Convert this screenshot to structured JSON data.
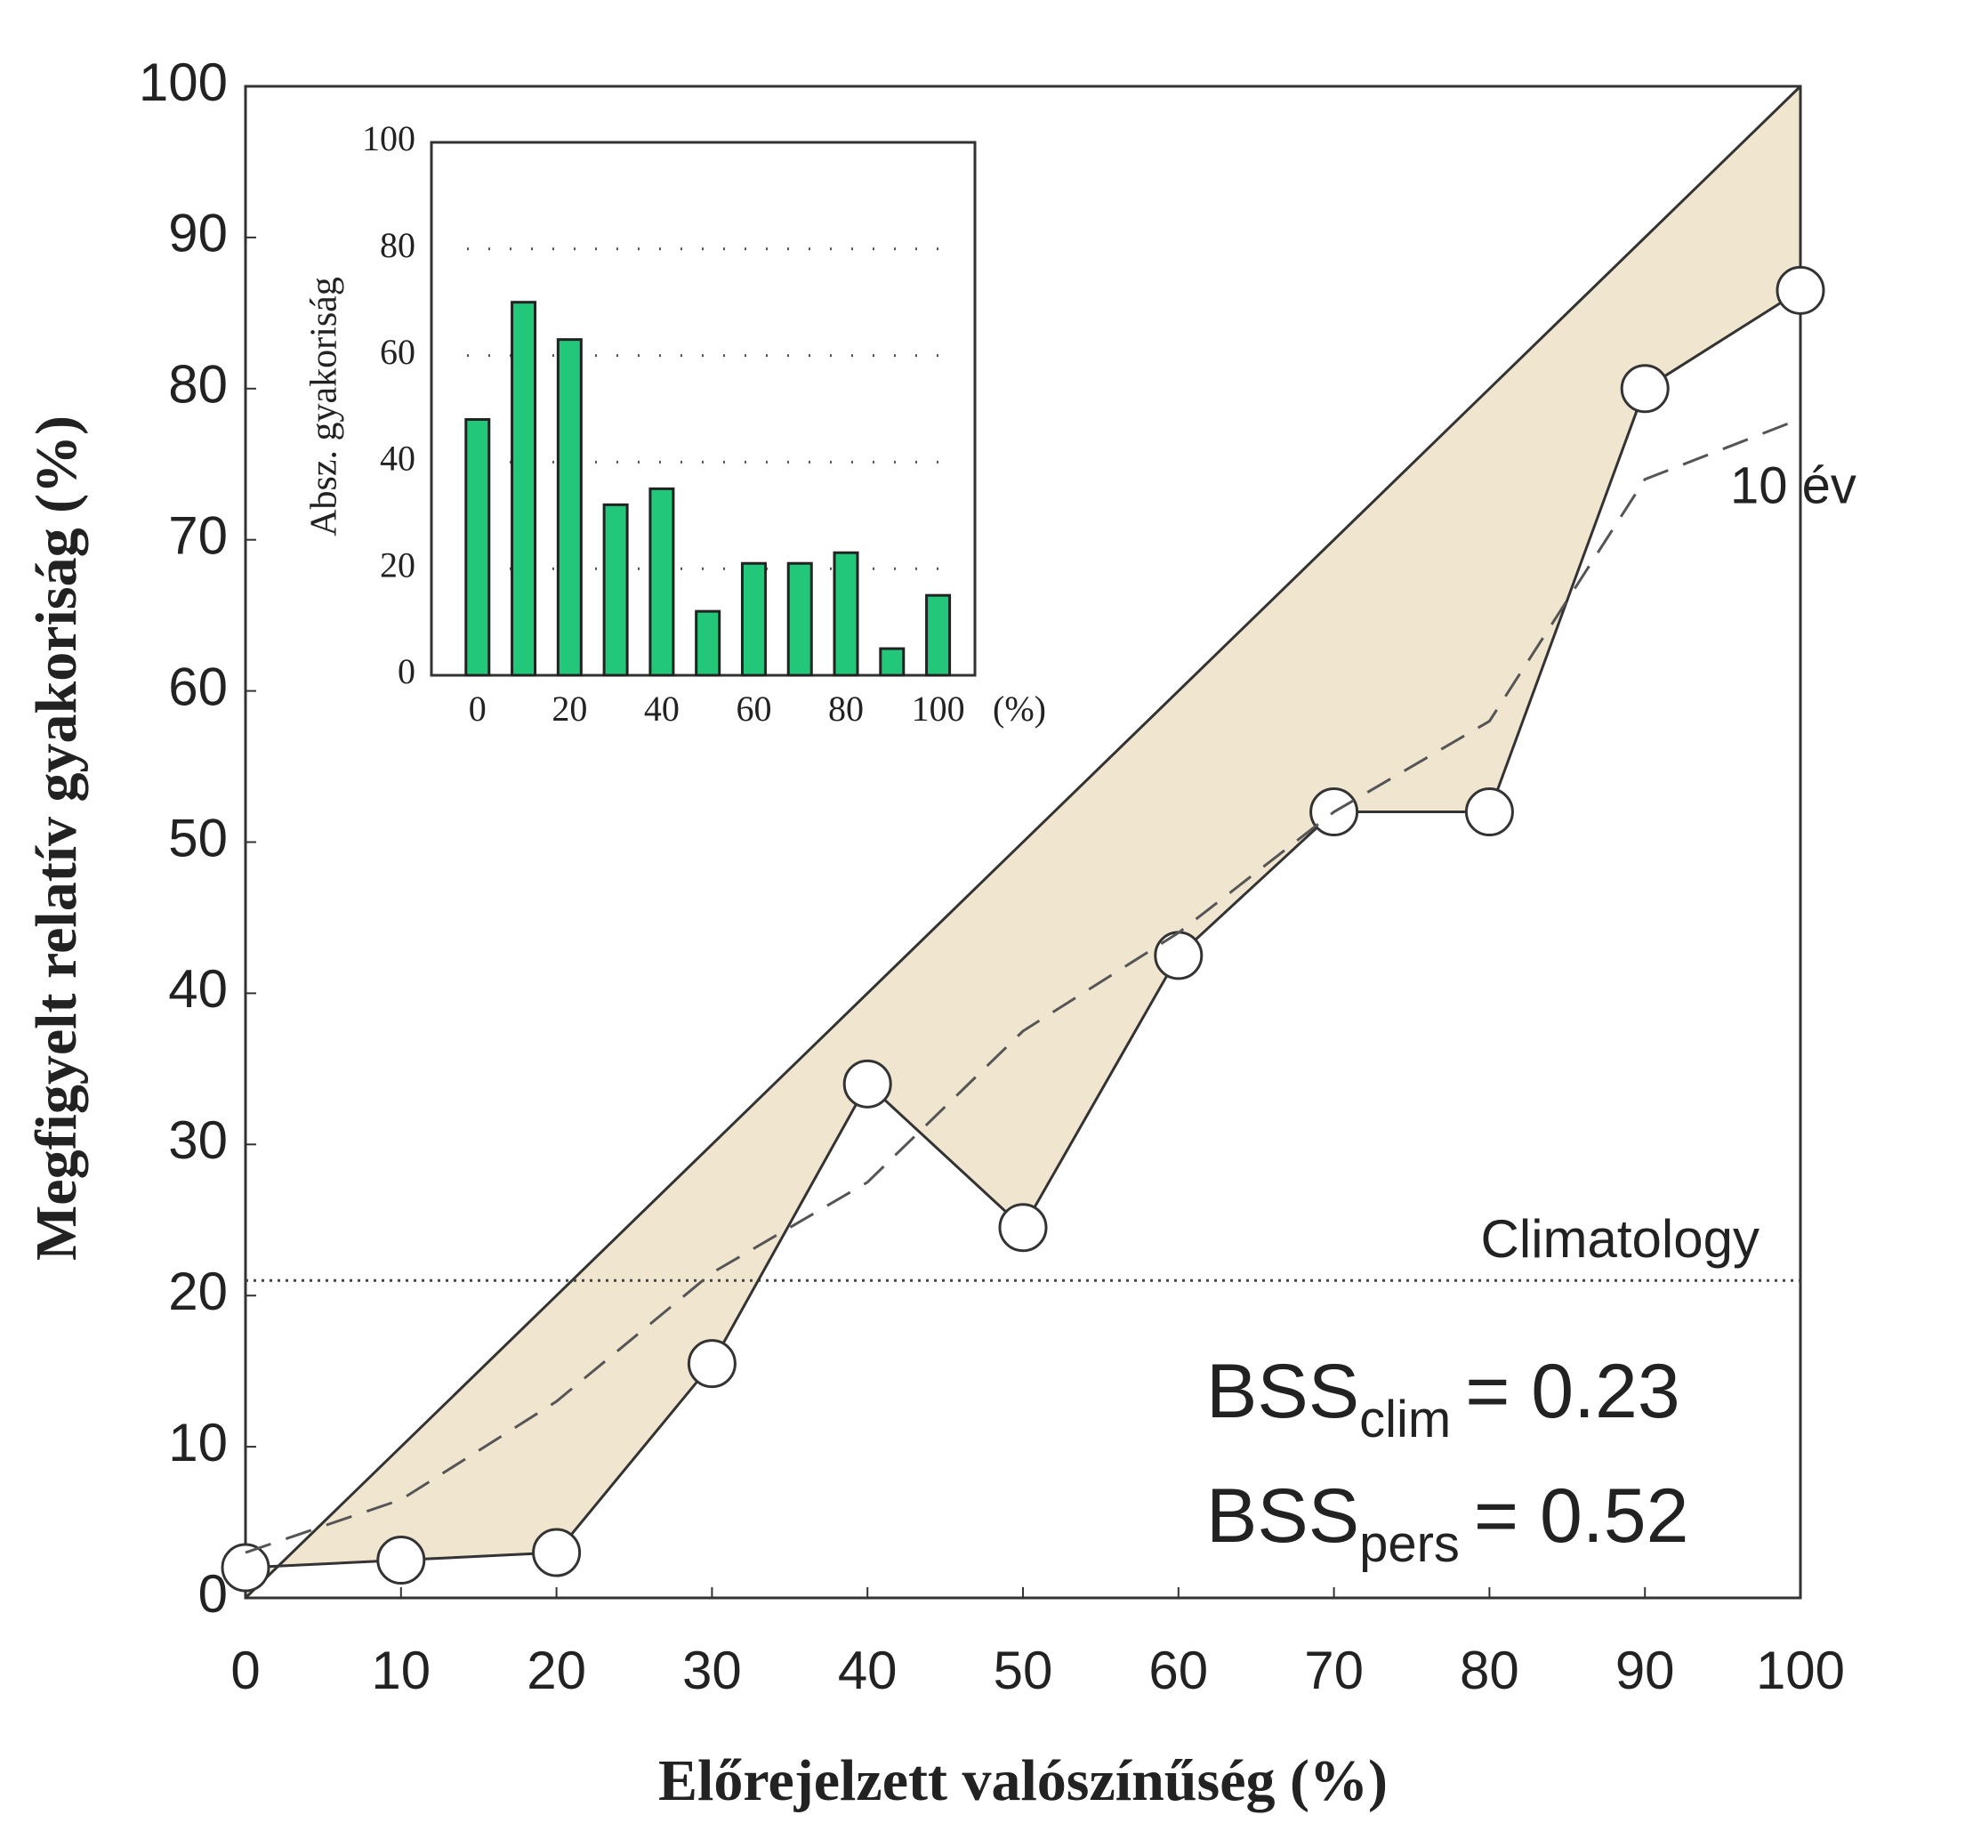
{
  "chart_data": [
    {
      "type": "line",
      "x_label": "Előrejelzett valószínűség (%)",
      "y_label": "Megfigyelt relatív gyakoriság (%)",
      "x": [
        0,
        10,
        20,
        30,
        40,
        50,
        60,
        70,
        80,
        90,
        100
      ],
      "series": [
        {
          "values": [
            2,
            2.5,
            3,
            15.5,
            34,
            24.5,
            42.5,
            52,
            52,
            80,
            86.5
          ],
          "color": "#333333"
        },
        {
          "name": "10 év",
          "values": [
            3,
            6.5,
            13,
            21.5,
            27.5,
            37.5,
            44,
            52,
            58,
            74,
            78
          ],
          "color": "#555555",
          "dashed": true
        }
      ],
      "climatology": {
        "label": "Climatology",
        "value": 21
      },
      "annotations": [
        {
          "main": "BSS",
          "sub": "clim",
          "text": "= 0.23"
        },
        {
          "main": "BSS",
          "sub": "pers",
          "text": "= 0.52"
        }
      ],
      "fill_color": "#f0e5cf",
      "xlim": [
        0,
        100
      ],
      "xticks": [
        0,
        10,
        20,
        30,
        40,
        50,
        60,
        70,
        80,
        90,
        100
      ],
      "ylim": [
        0,
        100
      ],
      "yticks": [
        0,
        10,
        20,
        30,
        40,
        50,
        60,
        70,
        80,
        90,
        100
      ]
    },
    {
      "type": "bar",
      "y_label": "Absz. gyakoriság",
      "x_unit": "(%)",
      "x": [
        0,
        10,
        20,
        30,
        40,
        50,
        60,
        70,
        80,
        90,
        100
      ],
      "values": [
        48,
        70,
        63,
        32,
        35,
        12,
        21,
        21,
        23,
        5,
        15
      ],
      "color": "#22c77a",
      "xlim": [
        -10,
        108
      ],
      "xticks": [
        0,
        20,
        40,
        60,
        80,
        100
      ],
      "ylim": [
        0,
        100
      ],
      "yticks": [
        0,
        20,
        40,
        60,
        80,
        100
      ],
      "grid": true
    }
  ]
}
